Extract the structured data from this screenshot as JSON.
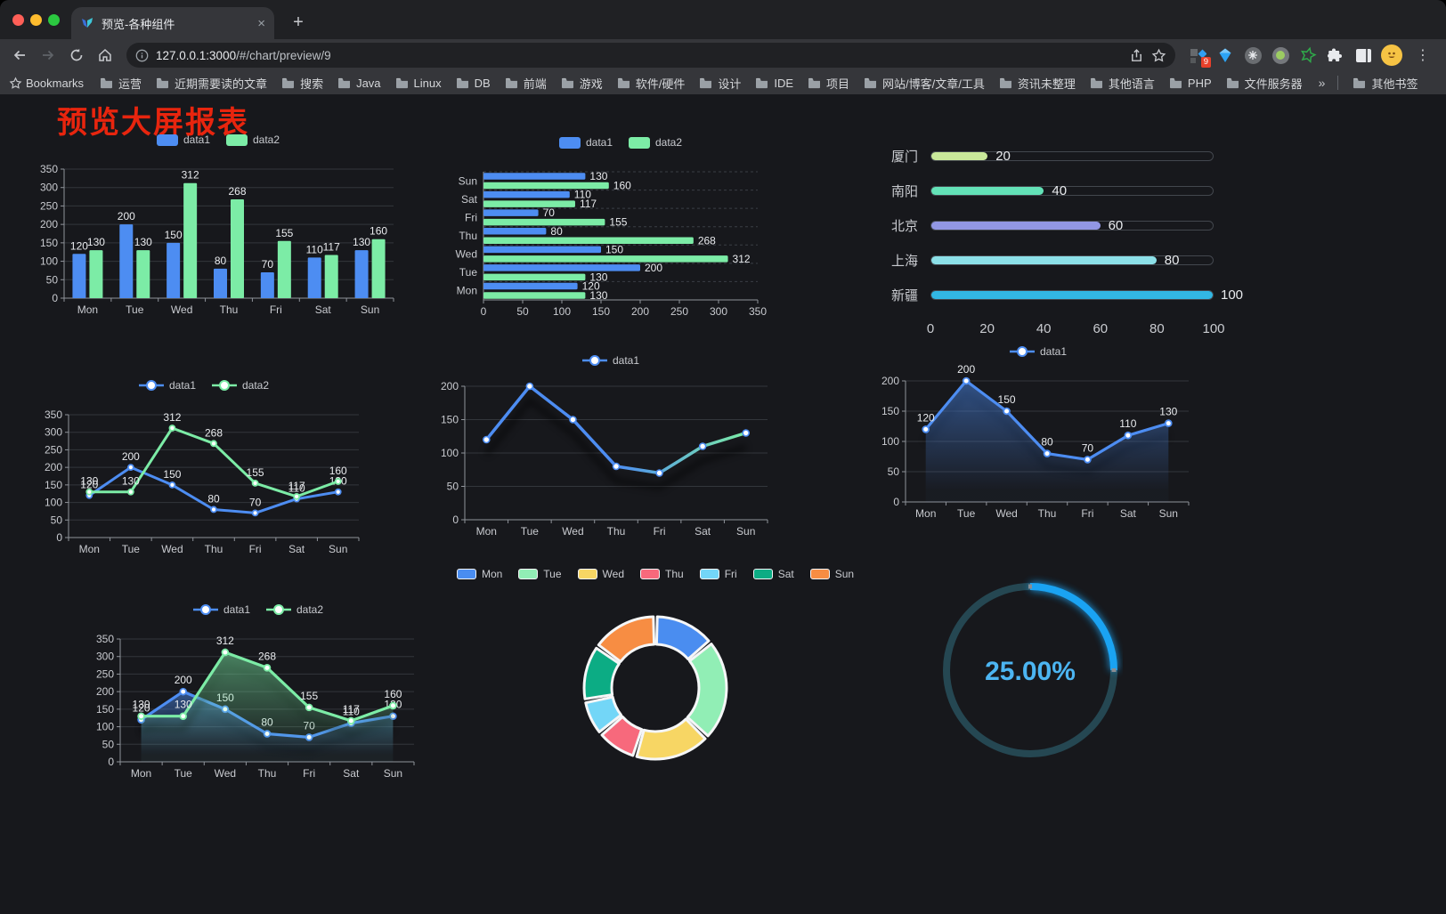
{
  "browser": {
    "tab_title": "预览-各种组件",
    "new_tab_icon": "+",
    "close_tab_icon": "×",
    "menu_icon": "⋮",
    "url_host": "127.0.0.1:3000",
    "url_path": "/#/chart/preview/9",
    "extension_badge": "9",
    "bookmarks_label": "Bookmarks",
    "bookmarks": [
      "运营",
      "近期需要读的文章",
      "搜索",
      "Java",
      "Linux",
      "DB",
      "前端",
      "游戏",
      "软件/硬件",
      "设计",
      "IDE",
      "项目",
      "网站/博客/文章/工具",
      "资讯未整理",
      "其他语言",
      "PHP",
      "文件服务器"
    ],
    "bookmarks_overflow": "»",
    "other_bookmarks": "其他书签"
  },
  "page": {
    "title": "预览大屏报表"
  },
  "theme": {
    "background": "#17181c",
    "axis_label": "#c9cbd0",
    "value_label": "#e9ebee",
    "grid_line": "#33363b",
    "axis_line": "#8f939a",
    "series_blue": "#4d8df2",
    "series_green": "#7ceca6"
  },
  "chart_data": [
    {
      "id": "bar-grouped",
      "type": "bar",
      "categories": [
        "Mon",
        "Tue",
        "Wed",
        "Thu",
        "Fri",
        "Sat",
        "Sun"
      ],
      "series": [
        {
          "name": "data1",
          "color": "#4d8df2",
          "values": [
            120,
            200,
            150,
            80,
            70,
            110,
            130
          ]
        },
        {
          "name": "data2",
          "color": "#7ceca6",
          "values": [
            130,
            130,
            312,
            268,
            155,
            117,
            160
          ]
        }
      ],
      "ylim": [
        0,
        350
      ],
      "ystep": 50,
      "grid": true,
      "legend_position": "top"
    },
    {
      "id": "bar-horizontal",
      "type": "bar-horizontal",
      "categories": [
        "Mon",
        "Tue",
        "Wed",
        "Thu",
        "Fri",
        "Sat",
        "Sun"
      ],
      "series": [
        {
          "name": "data1",
          "color": "#4d8df2",
          "values": [
            120,
            200,
            150,
            80,
            70,
            110,
            130
          ]
        },
        {
          "name": "data2",
          "color": "#7ceca6",
          "values": [
            130,
            130,
            312,
            268,
            155,
            117,
            160
          ]
        }
      ],
      "xlim": [
        0,
        350
      ],
      "xstep": 50,
      "legend_position": "top"
    },
    {
      "id": "progress-bars",
      "type": "progress",
      "items": [
        {
          "label": "厦门",
          "value": 20,
          "color": "#c9e89a"
        },
        {
          "label": "南阳",
          "value": 40,
          "color": "#63e2b7"
        },
        {
          "label": "北京",
          "value": 60,
          "color": "#9297e4"
        },
        {
          "label": "上海",
          "value": 80,
          "color": "#8ce0e8"
        },
        {
          "label": "新疆",
          "value": 100,
          "color": "#32b7e4"
        }
      ],
      "xlim": [
        0,
        100
      ],
      "xticks": [
        0,
        20,
        40,
        60,
        80,
        100
      ]
    },
    {
      "id": "line-two",
      "type": "line",
      "categories": [
        "Mon",
        "Tue",
        "Wed",
        "Thu",
        "Fri",
        "Sat",
        "Sun"
      ],
      "series": [
        {
          "name": "data1",
          "color": "#4d8df2",
          "values": [
            120,
            200,
            150,
            80,
            70,
            110,
            130
          ]
        },
        {
          "name": "data2",
          "color": "#7ceca6",
          "values": [
            130,
            130,
            312,
            268,
            155,
            117,
            160
          ]
        }
      ],
      "ylim": [
        0,
        350
      ],
      "ystep": 50,
      "labels": true,
      "legend_position": "top"
    },
    {
      "id": "line-gradient",
      "type": "line-gradient",
      "categories": [
        "Mon",
        "Tue",
        "Wed",
        "Thu",
        "Fri",
        "Sat",
        "Sun"
      ],
      "series": [
        {
          "name": "data1",
          "color": "#4d8df2",
          "color_end": "#7ceca6",
          "values": [
            120,
            200,
            150,
            80,
            70,
            110,
            130
          ]
        }
      ],
      "ylim": [
        0,
        200
      ],
      "ystep": 50,
      "labels": false,
      "legend_position": "top"
    },
    {
      "id": "area-single",
      "type": "area",
      "categories": [
        "Mon",
        "Tue",
        "Wed",
        "Thu",
        "Fri",
        "Sat",
        "Sun"
      ],
      "series": [
        {
          "name": "data1",
          "color": "#4d8df2",
          "values": [
            120,
            200,
            150,
            80,
            70,
            110,
            130
          ]
        }
      ],
      "ylim": [
        0,
        200
      ],
      "ystep": 50,
      "labels": true,
      "legend_position": "top"
    },
    {
      "id": "area-two",
      "type": "area",
      "categories": [
        "Mon",
        "Tue",
        "Wed",
        "Thu",
        "Fri",
        "Sat",
        "Sun"
      ],
      "series": [
        {
          "name": "data1",
          "color": "#4d8df2",
          "values": [
            120,
            200,
            150,
            80,
            70,
            110,
            130
          ]
        },
        {
          "name": "data2",
          "color": "#7ceca6",
          "values": [
            130,
            130,
            312,
            268,
            155,
            117,
            160
          ]
        }
      ],
      "ylim": [
        0,
        350
      ],
      "ystep": 50,
      "labels": true,
      "legend_position": "top"
    },
    {
      "id": "donut",
      "type": "pie",
      "categories": [
        "Mon",
        "Tue",
        "Wed",
        "Thu",
        "Fri",
        "Sat",
        "Sun"
      ],
      "values": [
        120,
        200,
        150,
        80,
        70,
        110,
        130
      ],
      "colors": [
        "#4a8df0",
        "#91eeb5",
        "#f7d664",
        "#f7697c",
        "#73d6f7",
        "#0cac84",
        "#f78d43"
      ],
      "legend_position": "top"
    },
    {
      "id": "gauge",
      "type": "gauge",
      "percent": 25,
      "value_label": "25.00%",
      "color": "#1aa3f2",
      "track_color": "#254752",
      "text_color": "#4cb5f2"
    }
  ]
}
